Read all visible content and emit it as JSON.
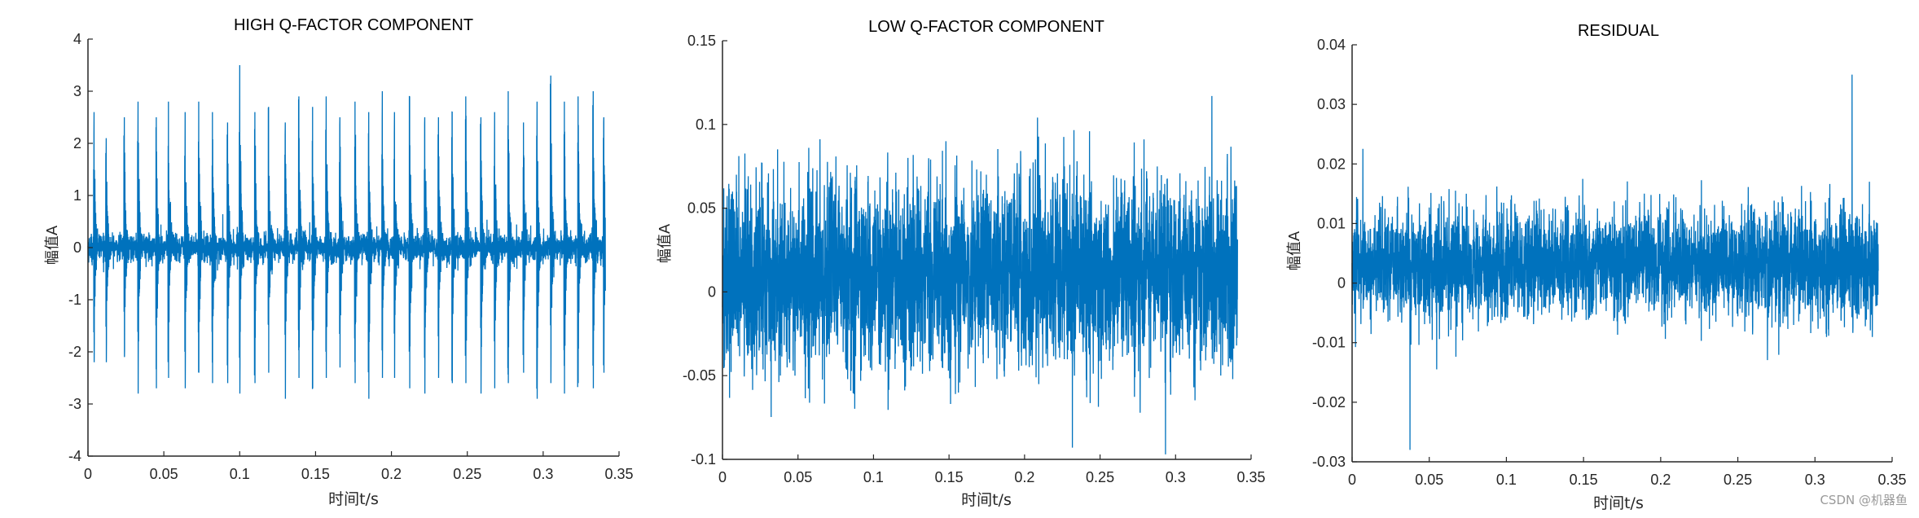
{
  "watermark": "CSDN @机器鱼",
  "colors": {
    "line": "#0072BD",
    "axis": "#262626",
    "background": "#ffffff"
  },
  "chart_data": [
    {
      "type": "line",
      "title": "HIGH Q-FACTOR COMPONENT",
      "xlabel": "时间t/s",
      "ylabel": "幅值A",
      "xlim": [
        0,
        0.35
      ],
      "ylim": [
        -4,
        4
      ],
      "xticks": [
        "0",
        "0.05",
        "0.1",
        "0.15",
        "0.2",
        "0.25",
        "0.3",
        "0.35"
      ],
      "yticks": [
        "-4",
        "-3",
        "-2",
        "-1",
        "0",
        "1",
        "2",
        "3",
        "4"
      ],
      "grid": false,
      "x_range": [
        0,
        0.341
      ],
      "baseline": 0,
      "noise_amplitude": 0.3,
      "impulse_times": [
        0.004,
        0.012,
        0.024,
        0.033,
        0.045,
        0.053,
        0.064,
        0.073,
        0.082,
        0.092,
        0.1,
        0.11,
        0.119,
        0.13,
        0.139,
        0.148,
        0.157,
        0.166,
        0.176,
        0.185,
        0.194,
        0.202,
        0.212,
        0.222,
        0.231,
        0.24,
        0.249,
        0.259,
        0.268,
        0.277,
        0.287,
        0.296,
        0.305,
        0.314,
        0.323,
        0.333,
        0.34
      ],
      "impulse_peaks_pos": [
        2.6,
        2.1,
        2.5,
        2.8,
        2.5,
        2.8,
        2.6,
        2.8,
        2.6,
        2.4,
        3.5,
        2.6,
        2.7,
        2.4,
        2.9,
        2.7,
        2.9,
        2.5,
        2.8,
        2.6,
        3.0,
        2.6,
        2.9,
        2.5,
        2.5,
        2.6,
        2.9,
        2.5,
        2.6,
        3.0,
        2.4,
        2.8,
        3.3,
        2.8,
        2.9,
        3.0,
        2.5
      ],
      "impulse_peaks_neg": [
        -2.2,
        -2.2,
        -2.1,
        -2.8,
        -2.7,
        -2.5,
        -2.7,
        -2.4,
        -2.6,
        -2.6,
        -2.8,
        -2.6,
        -2.4,
        -2.9,
        -2.5,
        -2.7,
        -2.5,
        -2.3,
        -2.6,
        -2.9,
        -2.5,
        -2.5,
        -2.7,
        -2.8,
        -2.5,
        -2.6,
        -2.6,
        -2.8,
        -2.7,
        -2.6,
        -2.4,
        -2.9,
        -2.6,
        -2.8,
        -2.6,
        -2.7,
        -2.4
      ]
    },
    {
      "type": "line",
      "title": "LOW Q-FACTOR COMPONENT",
      "xlabel": "时间t/s",
      "ylabel": "幅值A",
      "xlim": [
        0,
        0.35
      ],
      "ylim": [
        -0.1,
        0.15
      ],
      "xticks": [
        "0",
        "0.05",
        "0.1",
        "0.15",
        "0.2",
        "0.25",
        "0.3",
        "0.35"
      ],
      "yticks": [
        "-0.1",
        "-0.05",
        "0",
        "0.05",
        "0.1",
        "0.15"
      ],
      "grid": false,
      "x_range": [
        0,
        0.341
      ],
      "baseline": 0.01,
      "noise_amplitude": 0.05,
      "max_value": 0.117,
      "min_value": -0.097
    },
    {
      "type": "line",
      "title": "RESIDUAL",
      "xlabel": "时间t/s",
      "ylabel": "幅值A",
      "xlim": [
        0,
        0.35
      ],
      "ylim": [
        -0.03,
        0.04
      ],
      "xticks": [
        "0",
        "0.05",
        "0.1",
        "0.15",
        "0.2",
        "0.25",
        "0.3",
        "0.35"
      ],
      "yticks": [
        "-0.03",
        "-0.02",
        "-0.01",
        "0",
        "0.01",
        "0.02",
        "0.03",
        "0.04"
      ],
      "grid": false,
      "x_range": [
        0,
        0.341
      ],
      "baseline": 0.003,
      "noise_amplitude": 0.008,
      "max_value": 0.035,
      "min_value": -0.028
    }
  ]
}
